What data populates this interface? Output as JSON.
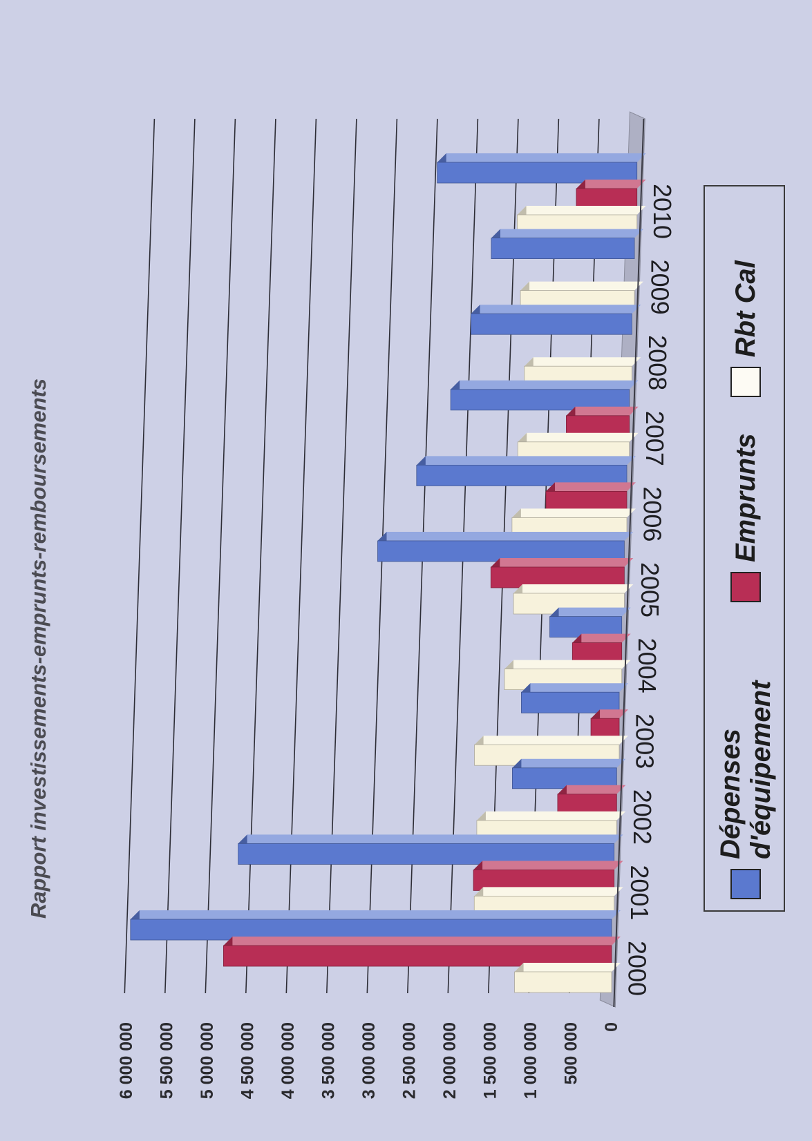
{
  "chart_data": {
    "type": "bar",
    "orientation": "vertical bars, page rotated 90°",
    "title": "Rapport investissements-emprunts-remboursements",
    "categories": [
      "2000",
      "2001",
      "2002",
      "2003",
      "2004",
      "2005",
      "2006",
      "2007",
      "2008",
      "2009",
      "2010"
    ],
    "series": [
      {
        "name": "Dépenses d'équipement",
        "color": "#5b79cf",
        "values": [
          5950000,
          4650000,
          1290000,
          1210000,
          890000,
          3050000,
          2600000,
          2210000,
          1990000,
          1770000,
          2470000
        ]
      },
      {
        "name": "Emprunts",
        "color": "#b82e55",
        "values": [
          4800000,
          1740000,
          730000,
          350000,
          610000,
          1650000,
          1000000,
          780000,
          0,
          0,
          750000
        ]
      },
      {
        "name": "Rbt Cal",
        "color": "#f7f2dc",
        "values": [
          1200000,
          1730000,
          1730000,
          1790000,
          1450000,
          1370000,
          1420000,
          1380000,
          1330000,
          1410000,
          1480000
        ]
      }
    ],
    "y_ticks": [
      "0",
      "500 000",
      "1 000 000",
      "1 500 000",
      "2 000 000",
      "2 500 000",
      "3 000 000",
      "3 500 000",
      "4 000 000",
      "4 500 000",
      "5 000 000",
      "5 500 000",
      "6 000 000"
    ],
    "ylim": [
      0,
      6000000
    ],
    "grid": true,
    "legend_position": "bottom"
  }
}
